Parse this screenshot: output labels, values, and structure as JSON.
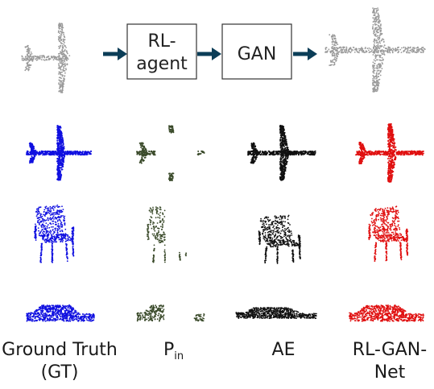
{
  "pipeline": {
    "box1": [
      "RL-",
      "agent"
    ],
    "box2": "GAN"
  },
  "columns": {
    "gt": [
      "Ground Truth",
      "(GT)"
    ],
    "pin_main": "P",
    "pin_sub": "in",
    "ae": "AE",
    "rlgan": [
      "RL-GAN-",
      "Net"
    ]
  },
  "colors": {
    "arrow": "#0b3d57",
    "gt": "#1010e0",
    "pin": "#3a4a2a",
    "ae": "#111111",
    "rlgan": "#e01010",
    "input_gray": "#9a9a9a"
  },
  "rows": [
    "airplane",
    "chair",
    "car"
  ]
}
